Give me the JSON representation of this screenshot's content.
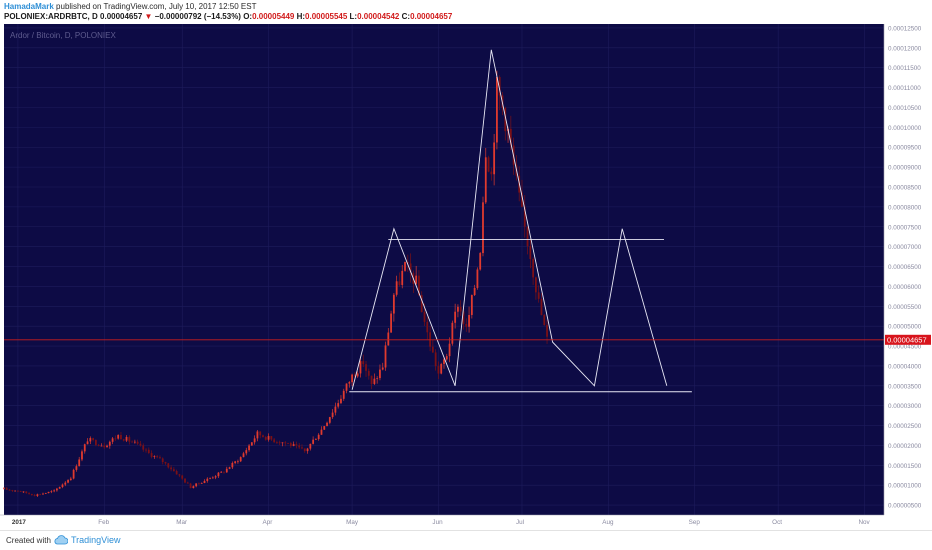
{
  "header": {
    "author": "HamadaMark",
    "published_text": "published on TradingView.com, July 10, 2017 12:50 EST",
    "symbol": "POLONIEX:ARDRBTC, D",
    "last_price": "0.00004657",
    "change_arrow": "▼",
    "change": "−0.00000792 (−14.53%)",
    "ohlc": [
      {
        "key": "O:",
        "value": "0.00005449"
      },
      {
        "key": "H:",
        "value": "0.00005545"
      },
      {
        "key": "L:",
        "value": "0.00004542"
      },
      {
        "key": "C:",
        "value": "0.00004657"
      }
    ]
  },
  "chart": {
    "watermark": "Ardor / Bitcoin, D, POLONIEX",
    "background": "#0d0b45",
    "up_color": "#e03a2e",
    "down_color": "#7c1016",
    "pattern_color": "#e8e8f5",
    "price_line_color": "#c81e1e",
    "current_price_label": "0.00004657"
  },
  "chart_data": {
    "type": "candlestick",
    "title": "Ardor / Bitcoin, D, POLONIEX",
    "x_tick_labels": [
      "2017",
      "Feb",
      "Mar",
      "Apr",
      "May",
      "Jun",
      "Jul",
      "Aug",
      "Sep",
      "Oct",
      "Nov"
    ],
    "y_tick_labels": [
      "0.00012500",
      "0.00012000",
      "0.00011500",
      "0.00011000",
      "0.00010500",
      "0.00010000",
      "0.00009500",
      "0.00009000",
      "0.00008500",
      "0.00008000",
      "0.00007500",
      "0.00007000",
      "0.00006500",
      "0.00006000",
      "0.00005500",
      "0.00005000",
      "0.00004500",
      "0.00004000",
      "0.00003500",
      "0.00003000",
      "0.00002500",
      "0.00002000",
      "0.00001500",
      "0.00001000",
      "0.00000500"
    ],
    "ylim": [
      2.5e-06,
      0.000126
    ],
    "current_price": 4.657e-05,
    "closes_by_date": [
      [
        "2016-12-27",
        9e-06
      ],
      [
        "2017-01-01",
        8.6e-06
      ],
      [
        "2017-01-07",
        7.5e-06
      ],
      [
        "2017-01-14",
        8.5e-06
      ],
      [
        "2017-01-20",
        1.2e-05
      ],
      [
        "2017-01-26",
        2.15e-05
      ],
      [
        "2017-02-01",
        2e-05
      ],
      [
        "2017-02-06",
        2.25e-05
      ],
      [
        "2017-02-12",
        2.05e-05
      ],
      [
        "2017-02-17",
        1.8e-05
      ],
      [
        "2017-02-22",
        1.6e-05
      ],
      [
        "2017-02-27",
        1.3e-05
      ],
      [
        "2017-03-04",
        9.5e-06
      ],
      [
        "2017-03-10",
        1.15e-05
      ],
      [
        "2017-03-16",
        1.35e-05
      ],
      [
        "2017-03-22",
        1.7e-05
      ],
      [
        "2017-03-28",
        2.3e-05
      ],
      [
        "2017-04-02",
        2.15e-05
      ],
      [
        "2017-04-08",
        2.05e-05
      ],
      [
        "2017-04-14",
        1.85e-05
      ],
      [
        "2017-04-20",
        2.4e-05
      ],
      [
        "2017-04-26",
        3.1e-05
      ],
      [
        "2017-05-01",
        3.75e-05
      ],
      [
        "2017-05-05",
        4.1e-05
      ],
      [
        "2017-05-08",
        3.5e-05
      ],
      [
        "2017-05-12",
        4e-05
      ],
      [
        "2017-05-16",
        5.8e-05
      ],
      [
        "2017-05-20",
        6.5e-05
      ],
      [
        "2017-05-24",
        6.1e-05
      ],
      [
        "2017-05-28",
        4.8e-05
      ],
      [
        "2017-06-01",
        3.8e-05
      ],
      [
        "2017-06-04",
        4.3e-05
      ],
      [
        "2017-06-08",
        5.6e-05
      ],
      [
        "2017-06-11",
        4.9e-05
      ],
      [
        "2017-06-14",
        6e-05
      ],
      [
        "2017-06-16",
        7e-05
      ],
      [
        "2017-06-18",
        9.5e-05
      ],
      [
        "2017-06-20",
        8.8e-05
      ],
      [
        "2017-06-22",
        0.00011
      ],
      [
        "2017-06-24",
        0.000105
      ],
      [
        "2017-06-26",
        9.9e-05
      ],
      [
        "2017-06-28",
        9e-05
      ],
      [
        "2017-07-01",
        7.8e-05
      ],
      [
        "2017-07-04",
        6.8e-05
      ],
      [
        "2017-07-07",
        5.6e-05
      ],
      [
        "2017-07-10",
        4.66e-05
      ]
    ],
    "support_level": 3.35e-05,
    "resistance_level": 7.18e-05,
    "projected_pattern": [
      [
        "2017-05-01",
        3.4e-05
      ],
      [
        "2017-05-16",
        7.45e-05
      ],
      [
        "2017-06-07",
        3.5e-05
      ],
      [
        "2017-06-20",
        0.0001195
      ],
      [
        "2017-07-12",
        4.6e-05
      ],
      [
        "2017-07-27",
        3.5e-05
      ],
      [
        "2017-08-06",
        7.45e-05
      ],
      [
        "2017-08-22",
        3.5e-05
      ]
    ]
  },
  "footer": {
    "created_with": "Created with",
    "brand": "TradingView"
  }
}
